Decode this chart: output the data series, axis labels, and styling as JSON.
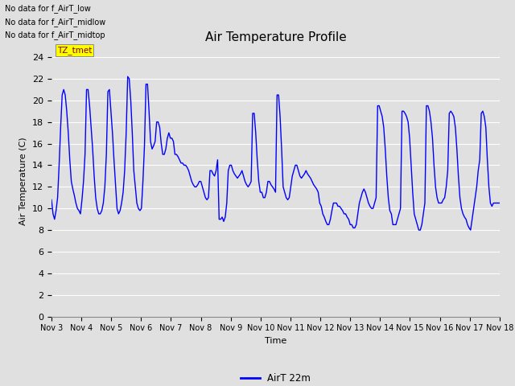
{
  "title": "Air Temperature Profile",
  "xlabel": "Time",
  "ylabel": "Air Temperature (C)",
  "legend_label": "AirT 22m",
  "line_color": "blue",
  "ylim": [
    0,
    25
  ],
  "yticks": [
    0,
    2,
    4,
    6,
    8,
    10,
    12,
    14,
    16,
    18,
    20,
    22,
    24
  ],
  "x_tick_labels": [
    "Nov 3",
    "Nov 4",
    "Nov 5",
    "Nov 6",
    "Nov 7",
    "Nov 8",
    "Nov 9",
    "Nov 10",
    "Nov 11",
    "Nov 12",
    "Nov 13",
    "Nov 14",
    "Nov 15",
    "Nov 16",
    "Nov 17",
    "Nov 18"
  ],
  "annotations": [
    "No data for f_AirT_low",
    "No data for f_AirT_midlow",
    "No data for f_AirT_midtop"
  ],
  "tz_label": "TZ_tmet",
  "background_color": "#e0e0e0",
  "plot_bg_color": "#e0e0e0",
  "grid_color": "white",
  "temperature_data": [
    10.8,
    9.5,
    9.0,
    9.8,
    11.0,
    14.0,
    17.5,
    20.5,
    21.0,
    20.5,
    19.0,
    17.0,
    14.5,
    12.5,
    11.8,
    11.2,
    10.5,
    10.0,
    9.8,
    9.5,
    10.8,
    12.5,
    15.0,
    21.0,
    21.0,
    19.5,
    17.5,
    15.5,
    13.0,
    11.0,
    10.0,
    9.5,
    9.5,
    9.8,
    10.5,
    12.0,
    15.0,
    20.8,
    21.0,
    19.0,
    17.0,
    14.5,
    12.2,
    10.0,
    9.5,
    9.8,
    10.5,
    11.5,
    13.5,
    17.0,
    22.2,
    22.0,
    20.0,
    17.0,
    13.5,
    12.0,
    10.5,
    10.0,
    9.8,
    10.0,
    12.5,
    15.8,
    21.5,
    21.5,
    19.0,
    16.2,
    15.5,
    15.8,
    16.2,
    18.0,
    18.0,
    17.5,
    16.0,
    15.0,
    15.0,
    15.5,
    16.5,
    17.0,
    16.5,
    16.5,
    16.2,
    15.0,
    15.0,
    14.8,
    14.5,
    14.2,
    14.2,
    14.0,
    14.0,
    13.8,
    13.5,
    13.0,
    12.5,
    12.2,
    12.0,
    12.0,
    12.2,
    12.5,
    12.5,
    12.0,
    11.5,
    11.0,
    10.8,
    11.0,
    13.5,
    13.5,
    13.2,
    13.0,
    13.5,
    14.5,
    9.0,
    9.0,
    9.2,
    8.8,
    9.2,
    10.5,
    13.5,
    14.0,
    14.0,
    13.5,
    13.2,
    13.0,
    12.8,
    13.0,
    13.2,
    13.5,
    13.0,
    12.5,
    12.2,
    12.0,
    12.2,
    12.5,
    18.8,
    18.8,
    17.0,
    14.5,
    12.5,
    11.5,
    11.5,
    11.0,
    11.0,
    11.5,
    12.5,
    12.5,
    12.2,
    12.0,
    11.8,
    11.5,
    20.5,
    20.5,
    18.5,
    15.5,
    12.0,
    11.5,
    11.0,
    10.8,
    11.0,
    12.0,
    13.0,
    13.5,
    14.0,
    14.0,
    13.5,
    13.0,
    12.8,
    13.0,
    13.2,
    13.5,
    13.2,
    13.0,
    12.8,
    12.5,
    12.2,
    12.0,
    11.8,
    11.5,
    10.5,
    10.2,
    9.5,
    9.2,
    8.8,
    8.5,
    8.5,
    9.0,
    9.8,
    10.5,
    10.5,
    10.5,
    10.2,
    10.2,
    10.0,
    9.8,
    9.5,
    9.5,
    9.2,
    9.0,
    8.5,
    8.5,
    8.2,
    8.2,
    8.5,
    9.5,
    10.5,
    11.0,
    11.5,
    11.8,
    11.5,
    11.0,
    10.5,
    10.2,
    10.0,
    10.0,
    10.5,
    11.0,
    19.5,
    19.5,
    19.0,
    18.5,
    17.5,
    15.5,
    13.0,
    11.0,
    9.8,
    9.5,
    8.5,
    8.5,
    8.5,
    9.0,
    9.5,
    10.0,
    19.0,
    19.0,
    18.8,
    18.5,
    18.0,
    16.5,
    14.0,
    11.5,
    9.5,
    9.0,
    8.5,
    8.0,
    8.0,
    8.5,
    9.5,
    10.5,
    19.5,
    19.5,
    19.0,
    18.0,
    16.5,
    14.0,
    12.0,
    11.0,
    10.5,
    10.5,
    10.5,
    10.8,
    11.0,
    12.0,
    13.5,
    18.8,
    19.0,
    18.8,
    18.5,
    17.5,
    15.5,
    13.0,
    11.0,
    10.0,
    9.5,
    9.2,
    9.0,
    8.5,
    8.2,
    8.0,
    9.0,
    10.0,
    11.0,
    12.0,
    13.5,
    14.5,
    18.8,
    19.0,
    18.5,
    17.5,
    14.5,
    12.0,
    10.5,
    10.2,
    10.5,
    10.5,
    10.5,
    10.5,
    10.5
  ]
}
